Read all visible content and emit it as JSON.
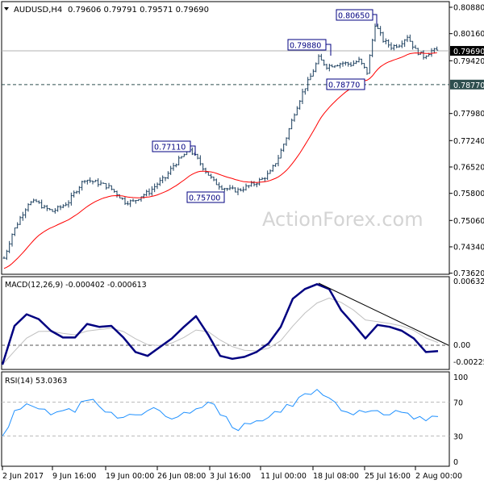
{
  "chart_data": [
    {
      "type": "ohlc",
      "title": "AUDUSD,H4",
      "ohlc_readout": "0.79606 0.79791 0.79571 0.79690",
      "ylim": [
        0.7362,
        0.8088
      ],
      "y_ticks": [
        "0.80880",
        "0.80160",
        "0.79420",
        "0.77980",
        "0.77240",
        "0.76520",
        "0.75800",
        "0.75060",
        "0.74340",
        "0.73620"
      ],
      "x_ticks": [
        "2 Jun 2017",
        "9 Jun 16:00",
        "19 Jun 00:00",
        "26 Jun 08:00",
        "3 Jul 16:00",
        "11 Jul 00:00",
        "18 Jul 08:00",
        "25 Jul 16:00",
        "2 Aug 00:00"
      ],
      "closes": [
        0.7403,
        0.7469,
        0.7513,
        0.7553,
        0.7557,
        0.754,
        0.7531,
        0.7542,
        0.7557,
        0.759,
        0.7619,
        0.7612,
        0.7606,
        0.7597,
        0.7579,
        0.7557,
        0.7557,
        0.7573,
        0.7584,
        0.7606,
        0.7623,
        0.7656,
        0.7678,
        0.77,
        0.7672,
        0.7641,
        0.7612,
        0.7597,
        0.759,
        0.7588,
        0.7597,
        0.7606,
        0.7619,
        0.7637,
        0.7678,
        0.7733,
        0.78,
        0.7855,
        0.7899,
        0.7949,
        0.7927,
        0.7932,
        0.7936,
        0.7932,
        0.7943,
        0.791,
        0.8042,
        0.7998,
        0.798,
        0.7987,
        0.8009,
        0.7971,
        0.7954,
        0.7969
      ],
      "current_price": {
        "label": "0.79690",
        "value": 0.7969,
        "color": "#000000"
      },
      "level_line": {
        "label": "0.78770",
        "value": 0.7877,
        "color": "#2f4f4f"
      },
      "annotations": [
        {
          "label": "0.80650",
          "value": 0.8065
        },
        {
          "label": "0.79880",
          "value": 0.7988
        },
        {
          "label": "0.78770",
          "value": 0.7877
        },
        {
          "label": "0.77110",
          "value": 0.7711
        },
        {
          "label": "0.75700",
          "value": 0.757
        }
      ],
      "colors": {
        "bars": "#1c3f5e",
        "moving_average": "#ff0000",
        "annotation": "#000080"
      },
      "watermark": "ActionForex.com"
    },
    {
      "type": "line",
      "title": "MACD(12,26,9) -0.000402 -0.000613",
      "ylim": [
        -0.002253,
        0.006326
      ],
      "y_ticks": [
        "0.006326",
        "0.00",
        "-0.002253"
      ],
      "macd": [
        -0.002,
        0.002,
        0.0032,
        0.0027,
        0.0015,
        0.0008,
        0.0008,
        0.0022,
        0.0019,
        0.002,
        0.0008,
        -0.0007,
        -0.0011,
        -0.0002,
        0.0007,
        0.0019,
        0.003,
        0.0011,
        -0.0011,
        -0.0014,
        -0.0012,
        -0.0007,
        0.0002,
        0.0019,
        0.0048,
        0.0058,
        0.0063,
        0.0058,
        0.0036,
        0.0022,
        0.0007,
        0.0021,
        0.0019,
        0.0015,
        0.0007,
        -0.0007,
        -0.0006
      ],
      "colors": {
        "macd": "#000080",
        "signal": "#c0c0c0",
        "trendline": "#000000"
      }
    },
    {
      "type": "line",
      "title": "RSI(14) 53.0363",
      "ylim": [
        0,
        100
      ],
      "y_ticks": [
        "100",
        "70",
        "30",
        "0"
      ],
      "levels": [
        70,
        30
      ],
      "rsi": [
        30,
        60,
        68,
        62,
        55,
        60,
        58,
        72,
        65,
        58,
        52,
        55,
        60,
        60,
        50,
        58,
        62,
        70,
        55,
        40,
        45,
        48,
        52,
        58,
        65,
        80,
        85,
        75,
        60,
        55,
        58,
        60,
        55,
        58,
        50,
        48,
        53
      ],
      "colors": {
        "rsi": "#1e90ff"
      }
    }
  ]
}
